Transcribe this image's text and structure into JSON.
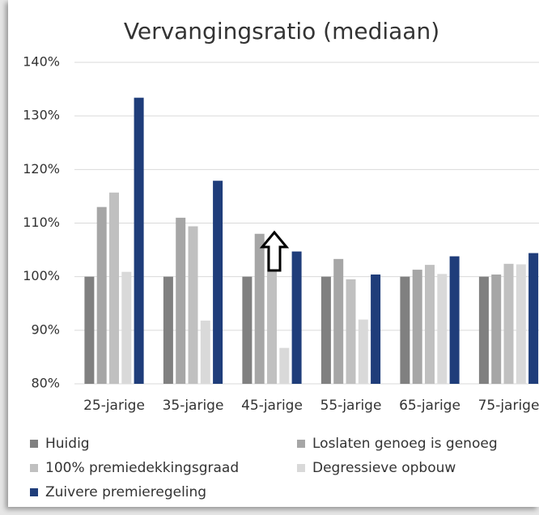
{
  "chart_data": {
    "type": "bar",
    "title": "Vervangingsratio (mediaan)",
    "categories": [
      "25-jarige",
      "35-jarige",
      "45-jarige",
      "55-jarige",
      "65-jarige",
      "75-jarige"
    ],
    "series": [
      {
        "name": "Huidig",
        "color": "#808080",
        "values": [
          100,
          100,
          100,
          100,
          100,
          100
        ]
      },
      {
        "name": "Loslaten genoeg is genoeg",
        "color": "#a6a6a6",
        "values": [
          113,
          111,
          108,
          103.3,
          101.3,
          100.4
        ]
      },
      {
        "name": "100% premiedekkingsgraad",
        "color": "#c0c0c0",
        "values": [
          115.7,
          109.4,
          105,
          99.5,
          102.2,
          102.4
        ]
      },
      {
        "name": "Degressieve opbouw",
        "color": "#d9d9d9",
        "values": [
          100.9,
          91.8,
          86.7,
          92,
          100.5,
          102.3
        ]
      },
      {
        "name": "Zuivere premieregeling",
        "color": "#1f3d7a",
        "values": [
          133.4,
          117.9,
          104.7,
          100.4,
          103.8,
          104.4
        ]
      }
    ],
    "ylim": [
      80,
      140
    ],
    "yticks": [
      {
        "value": 80,
        "label": "80%"
      },
      {
        "value": 90,
        "label": "90%"
      },
      {
        "value": 100,
        "label": "100%"
      },
      {
        "value": 110,
        "label": "110%"
      },
      {
        "value": 120,
        "label": "120%"
      },
      {
        "value": 130,
        "label": "130%"
      },
      {
        "value": 140,
        "label": "140%"
      }
    ],
    "grid": true,
    "legend": "bottom"
  }
}
